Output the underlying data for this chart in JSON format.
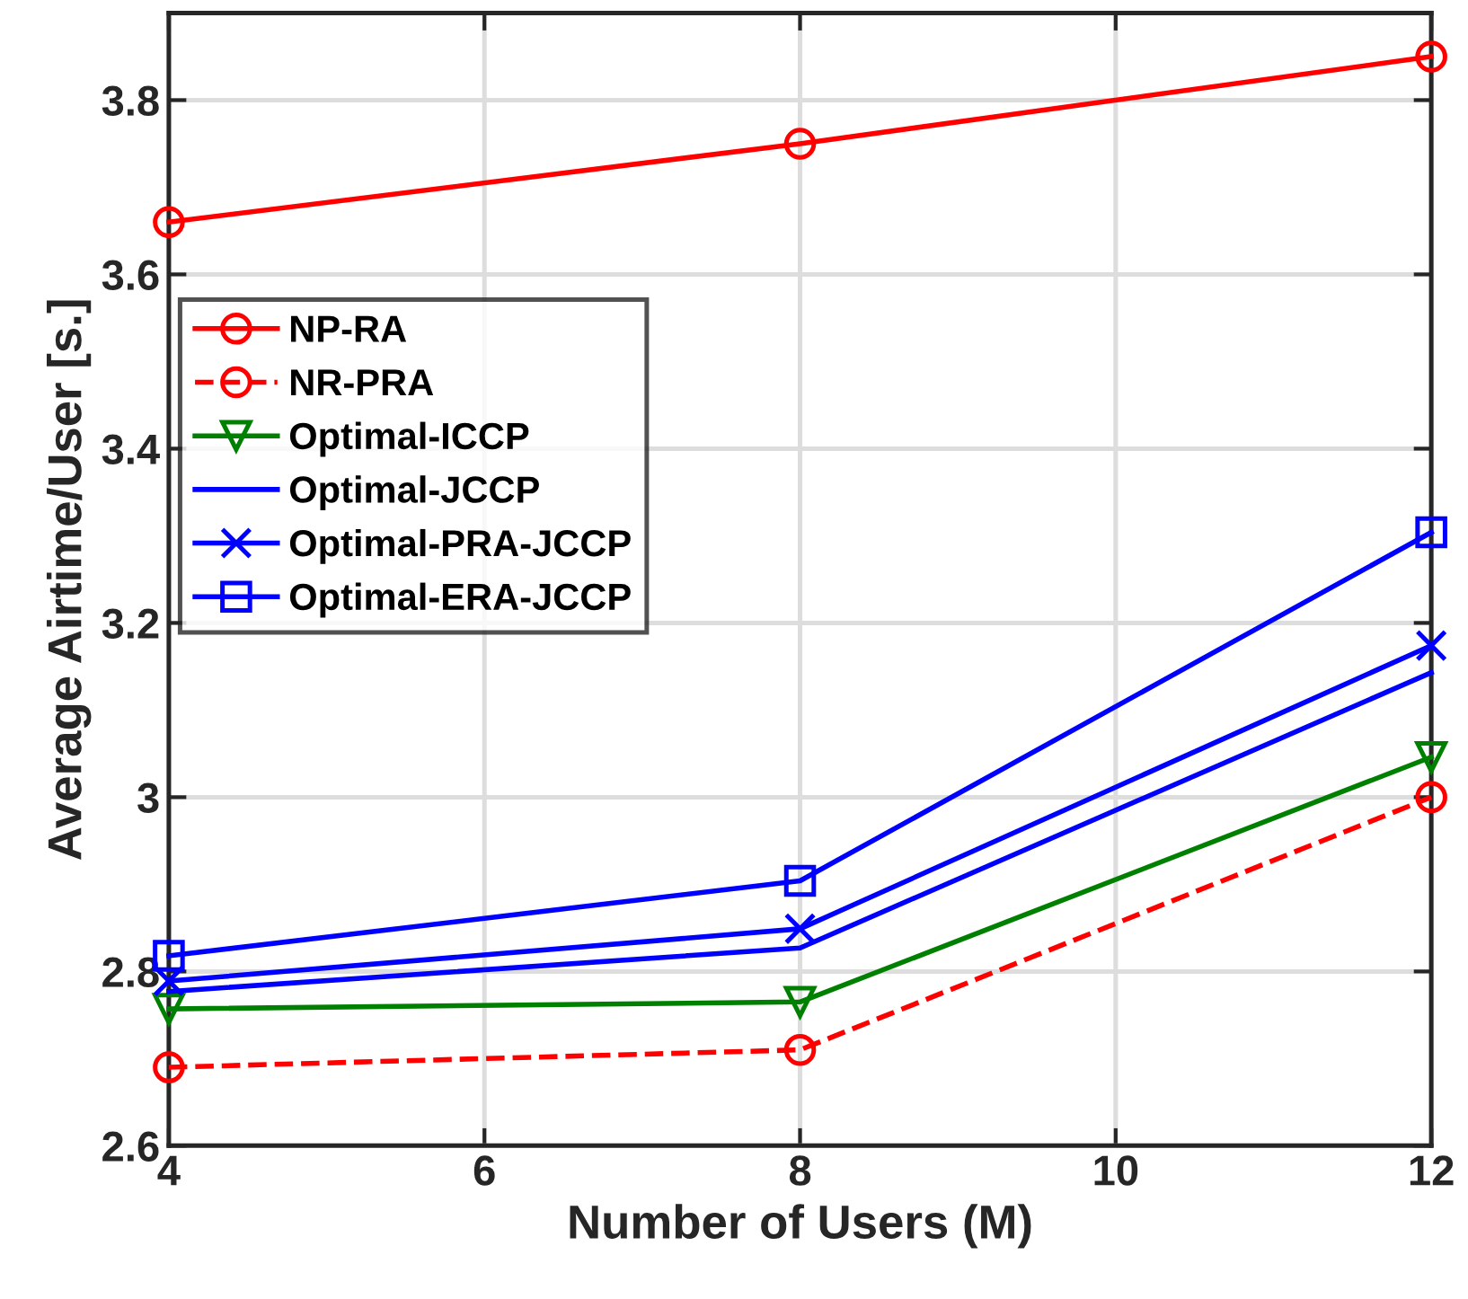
{
  "chart_data": {
    "type": "line",
    "xlabel": "Number of Users (M)",
    "ylabel": "Average Airtime/User [s.]",
    "x": [
      4,
      8,
      12
    ],
    "xlim": [
      4,
      12
    ],
    "xticks": [
      4,
      6,
      8,
      10,
      12
    ],
    "ylim": [
      2.6,
      3.9
    ],
    "yticks": [
      2.6,
      2.8,
      3,
      3.2,
      3.4,
      3.6,
      3.8
    ],
    "grid": true,
    "legend": "left",
    "series": [
      {
        "name": "NP-RA",
        "color": "#ff0000",
        "marker": "circle",
        "line_style": "solid",
        "values": [
          3.66,
          3.75,
          3.85
        ]
      },
      {
        "name": "NR-PRA",
        "color": "#ff0000",
        "marker": "circle",
        "line_style": "dashed",
        "values": [
          2.69,
          2.71,
          3.0
        ]
      },
      {
        "name": "Optimal-ICCP",
        "color": "#008000",
        "marker": "triangle",
        "line_style": "solid",
        "values": [
          2.757,
          2.765,
          3.046
        ]
      },
      {
        "name": "Optimal-JCCP",
        "color": "#0000ff",
        "marker": "none",
        "line_style": "solid",
        "values": [
          2.777,
          2.827,
          3.143
        ]
      },
      {
        "name": "Optimal-PRA-JCCP",
        "color": "#0000ff",
        "marker": "cross",
        "line_style": "solid",
        "values": [
          2.789,
          2.849,
          3.174
        ]
      },
      {
        "name": "Optimal-ERA-JCCP",
        "color": "#0000ff",
        "marker": "square",
        "line_style": "solid",
        "values": [
          2.818,
          2.904,
          3.304
        ]
      }
    ]
  }
}
